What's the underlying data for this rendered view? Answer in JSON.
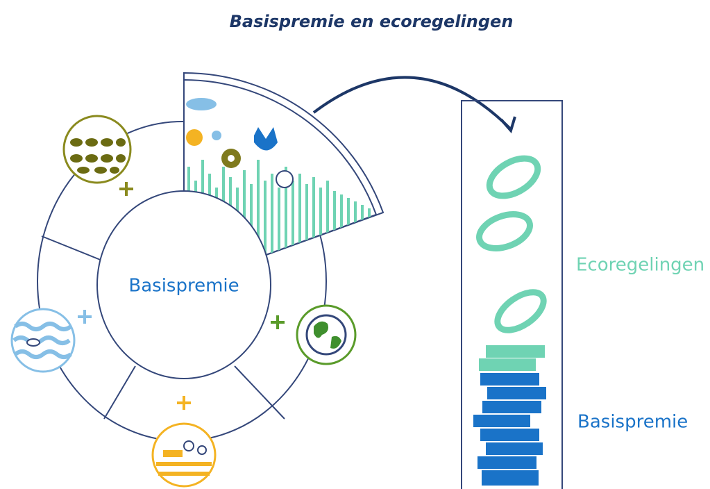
{
  "title": "Basispremie en ecoregelingen",
  "wheel": {
    "center_label": "Basispremie"
  },
  "stack": {
    "top_label": "Ecoregelingen",
    "bottom_label": "Basispremie"
  }
}
